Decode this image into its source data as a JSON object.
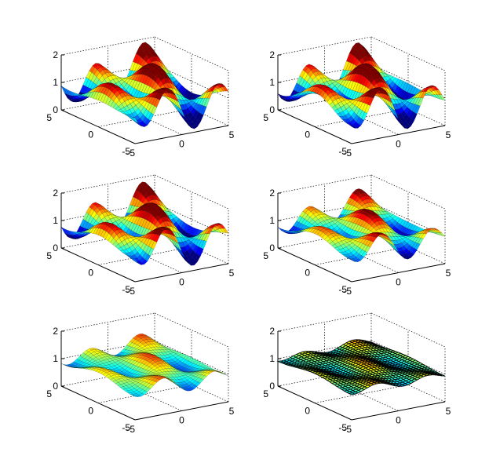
{
  "figure": {
    "background": "#ffffff",
    "colormap": "jet"
  },
  "chart_data": [
    {
      "type": "surface",
      "row": 1,
      "col": 1,
      "xlim": [
        -5,
        5
      ],
      "ylim": [
        -5,
        5
      ],
      "zlim": [
        0,
        2
      ],
      "xticks": [
        "-5",
        "0",
        "5"
      ],
      "yticks": [
        "-5",
        "0",
        "5"
      ],
      "zticks": [
        "0",
        "1",
        "2"
      ],
      "amplitude": 0.9,
      "phase": 0,
      "edge": "thin",
      "grid": "on"
    },
    {
      "type": "surface",
      "row": 1,
      "col": 2,
      "xlim": [
        -5,
        5
      ],
      "ylim": [
        -5,
        5
      ],
      "zlim": [
        0,
        2
      ],
      "xticks": [
        "-5",
        "0",
        "5"
      ],
      "yticks": [
        "-5",
        "0",
        "5"
      ],
      "zticks": [
        "0",
        "1",
        "2"
      ],
      "amplitude": 0.9,
      "phase": 0.5,
      "edge": "thin",
      "grid": "on"
    },
    {
      "type": "surface",
      "row": 2,
      "col": 1,
      "xlim": [
        -5,
        5
      ],
      "ylim": [
        -5,
        5
      ],
      "zlim": [
        0,
        2
      ],
      "xticks": [
        "-5",
        "0",
        "5"
      ],
      "yticks": [
        "-5",
        "0",
        "5"
      ],
      "zticks": [
        "0",
        "1",
        "2"
      ],
      "amplitude": 0.85,
      "phase": 0.2,
      "edge": "thin",
      "grid": "on"
    },
    {
      "type": "surface",
      "row": 2,
      "col": 2,
      "xlim": [
        -5,
        5
      ],
      "ylim": [
        -5,
        5
      ],
      "zlim": [
        0,
        2
      ],
      "xticks": [
        "-5",
        "0",
        "5"
      ],
      "yticks": [
        "-5",
        "0",
        "5"
      ],
      "zticks": [
        "0",
        "1",
        "2"
      ],
      "amplitude": 0.6,
      "phase": 0.4,
      "edge": "thin",
      "grid": "on"
    },
    {
      "type": "surface",
      "row": 3,
      "col": 1,
      "xlim": [
        -5,
        5
      ],
      "ylim": [
        -5,
        5
      ],
      "zlim": [
        0,
        2
      ],
      "xticks": [
        "-5",
        "0",
        "5"
      ],
      "yticks": [
        "-5",
        "0",
        "5"
      ],
      "zticks": [
        "0",
        "1",
        "2"
      ],
      "amplitude": 0.35,
      "phase": 0.6,
      "edge": "thin",
      "grid": "on"
    },
    {
      "type": "surface",
      "row": 3,
      "col": 2,
      "xlim": [
        -5,
        5
      ],
      "ylim": [
        -5,
        5
      ],
      "zlim": [
        0,
        2
      ],
      "xticks": [
        "-5",
        "0",
        "5"
      ],
      "yticks": [
        "-5",
        "0",
        "5"
      ],
      "zticks": [
        "0",
        "1",
        "2"
      ],
      "amplitude": 0.15,
      "phase": 1.0,
      "edge": "heavy",
      "grid": "on"
    }
  ]
}
